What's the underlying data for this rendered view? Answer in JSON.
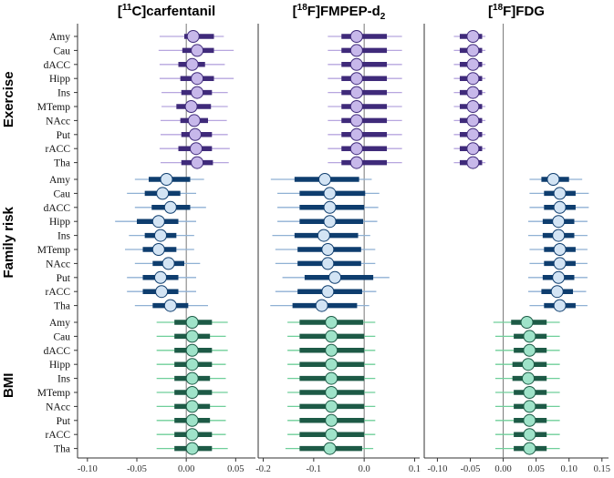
{
  "chart_data": {
    "type": "forest",
    "regions": [
      "Amy",
      "Cau",
      "dACC",
      "Hipp",
      "Ins",
      "MTemp",
      "NAcc",
      "Put",
      "rACC",
      "Tha"
    ],
    "groups": [
      {
        "label": "Exercise",
        "color": "#3f2a7a",
        "fill": "#c7b8ea",
        "thin": "#b7a6df"
      },
      {
        "label": "Family risk",
        "color": "#0e3d6e",
        "fill": "#d3e4f4",
        "thin": "#8fb1d4"
      },
      {
        "label": "BMI",
        "color": "#1d5a46",
        "fill": "#9fe3c9",
        "thin": "#6fcf9a"
      }
    ],
    "panels": [
      {
        "title_parts": [
          "[",
          "11",
          "C]carfentanil"
        ],
        "ticks": [
          "-0.10",
          "-0.05",
          "0.00",
          "0.05"
        ],
        "tick_values": [
          -0.1,
          -0.05,
          0.0,
          0.05
        ],
        "xlim": [
          -0.11,
          0.07
        ],
        "estimates": [
          [
            {
              "est": 0.007,
              "lo50": -0.002,
              "hi50": 0.028,
              "lo95": -0.027,
              "hi95": 0.038
            },
            {
              "est": 0.011,
              "lo50": -0.004,
              "hi50": 0.028,
              "lo95": -0.028,
              "hi95": 0.048
            },
            {
              "est": 0.006,
              "lo50": -0.008,
              "hi50": 0.019,
              "lo95": -0.027,
              "hi95": 0.039
            },
            {
              "est": 0.011,
              "lo50": -0.006,
              "hi50": 0.028,
              "lo95": -0.027,
              "hi95": 0.048
            },
            {
              "est": 0.011,
              "lo50": -0.005,
              "hi50": 0.026,
              "lo95": -0.025,
              "hi95": 0.042
            },
            {
              "est": 0.005,
              "lo50": -0.01,
              "hi50": 0.025,
              "lo95": -0.025,
              "hi95": 0.042
            },
            {
              "est": 0.008,
              "lo50": -0.006,
              "hi50": 0.022,
              "lo95": -0.026,
              "hi95": 0.041
            },
            {
              "est": 0.009,
              "lo50": -0.005,
              "hi50": 0.026,
              "lo95": -0.026,
              "hi95": 0.042
            },
            {
              "est": 0.01,
              "lo50": -0.008,
              "hi50": 0.026,
              "lo95": -0.027,
              "hi95": 0.044
            },
            {
              "est": 0.011,
              "lo50": -0.005,
              "hi50": 0.027,
              "lo95": -0.026,
              "hi95": 0.043
            }
          ],
          [
            {
              "est": -0.02,
              "lo50": -0.038,
              "hi50": 0.004,
              "lo95": -0.052,
              "hi95": 0.018
            },
            {
              "est": -0.024,
              "lo50": -0.042,
              "hi50": -0.006,
              "lo95": -0.06,
              "hi95": 0.01
            },
            {
              "est": -0.016,
              "lo50": -0.035,
              "hi50": 0.004,
              "lo95": -0.052,
              "hi95": 0.02
            },
            {
              "est": -0.028,
              "lo50": -0.05,
              "hi50": -0.008,
              "lo95": -0.072,
              "hi95": 0.01
            },
            {
              "est": -0.026,
              "lo50": -0.042,
              "hi50": -0.01,
              "lo95": -0.058,
              "hi95": 0.008
            },
            {
              "est": -0.028,
              "lo50": -0.044,
              "hi50": -0.01,
              "lo95": -0.062,
              "hi95": 0.008
            },
            {
              "est": -0.018,
              "lo50": -0.034,
              "hi50": -0.002,
              "lo95": -0.052,
              "hi95": 0.014
            },
            {
              "est": -0.026,
              "lo50": -0.044,
              "hi50": -0.008,
              "lo95": -0.06,
              "hi95": 0.01
            },
            {
              "est": -0.025,
              "lo50": -0.044,
              "hi50": -0.008,
              "lo95": -0.06,
              "hi95": 0.01
            },
            {
              "est": -0.016,
              "lo50": -0.034,
              "hi50": 0.002,
              "lo95": -0.052,
              "hi95": 0.022
            }
          ],
          [
            {
              "est": 0.006,
              "lo50": -0.012,
              "hi50": 0.026,
              "lo95": -0.03,
              "hi95": 0.042
            },
            {
              "est": 0.006,
              "lo50": -0.012,
              "hi50": 0.024,
              "lo95": -0.03,
              "hi95": 0.04
            },
            {
              "est": 0.006,
              "lo50": -0.012,
              "hi50": 0.026,
              "lo95": -0.03,
              "hi95": 0.042
            },
            {
              "est": 0.006,
              "lo50": -0.012,
              "hi50": 0.026,
              "lo95": -0.03,
              "hi95": 0.04
            },
            {
              "est": 0.006,
              "lo50": -0.012,
              "hi50": 0.024,
              "lo95": -0.03,
              "hi95": 0.04
            },
            {
              "est": 0.006,
              "lo50": -0.012,
              "hi50": 0.026,
              "lo95": -0.03,
              "hi95": 0.042
            },
            {
              "est": 0.006,
              "lo50": -0.012,
              "hi50": 0.024,
              "lo95": -0.03,
              "hi95": 0.04
            },
            {
              "est": 0.006,
              "lo50": -0.012,
              "hi50": 0.024,
              "lo95": -0.03,
              "hi95": 0.04
            },
            {
              "est": 0.006,
              "lo50": -0.012,
              "hi50": 0.026,
              "lo95": -0.03,
              "hi95": 0.04
            },
            {
              "est": 0.006,
              "lo50": -0.012,
              "hi50": 0.026,
              "lo95": -0.03,
              "hi95": 0.042
            }
          ]
        ]
      },
      {
        "title_parts": [
          "[",
          "18",
          "F]FMPEP-d",
          "2"
        ],
        "ticks": [
          "-0.2",
          "-0.1",
          "0.0",
          "0.1"
        ],
        "tick_values": [
          -0.2,
          -0.1,
          0.0,
          0.1
        ],
        "xlim": [
          -0.21,
          0.11
        ],
        "estimates": [
          [
            {
              "est": -0.015,
              "lo50": -0.045,
              "hi50": 0.045,
              "lo95": -0.072,
              "hi95": 0.075
            },
            {
              "est": -0.015,
              "lo50": -0.045,
              "hi50": 0.045,
              "lo95": -0.072,
              "hi95": 0.075
            },
            {
              "est": -0.015,
              "lo50": -0.045,
              "hi50": 0.045,
              "lo95": -0.072,
              "hi95": 0.075
            },
            {
              "est": -0.015,
              "lo50": -0.045,
              "hi50": 0.045,
              "lo95": -0.072,
              "hi95": 0.075
            },
            {
              "est": -0.015,
              "lo50": -0.045,
              "hi50": 0.045,
              "lo95": -0.072,
              "hi95": 0.075
            },
            {
              "est": -0.015,
              "lo50": -0.045,
              "hi50": 0.045,
              "lo95": -0.072,
              "hi95": 0.075
            },
            {
              "est": -0.015,
              "lo50": -0.045,
              "hi50": 0.045,
              "lo95": -0.072,
              "hi95": 0.075
            },
            {
              "est": -0.015,
              "lo50": -0.045,
              "hi50": 0.045,
              "lo95": -0.072,
              "hi95": 0.075
            },
            {
              "est": -0.015,
              "lo50": -0.045,
              "hi50": 0.045,
              "lo95": -0.072,
              "hi95": 0.075
            },
            {
              "est": -0.015,
              "lo50": -0.045,
              "hi50": 0.045,
              "lo95": -0.072,
              "hi95": 0.075
            }
          ],
          [
            {
              "est": -0.078,
              "lo50": -0.138,
              "hi50": -0.01,
              "lo95": -0.185,
              "hi95": 0.015
            },
            {
              "est": -0.068,
              "lo50": -0.128,
              "hi50": 0.002,
              "lo95": -0.172,
              "hi95": 0.03
            },
            {
              "est": -0.068,
              "lo50": -0.128,
              "hi50": 0.0,
              "lo95": -0.172,
              "hi95": 0.028
            },
            {
              "est": -0.068,
              "lo50": -0.128,
              "hi50": -0.002,
              "lo95": -0.172,
              "hi95": 0.026
            },
            {
              "est": -0.08,
              "lo50": -0.138,
              "hi50": -0.012,
              "lo95": -0.182,
              "hi95": 0.012
            },
            {
              "est": -0.072,
              "lo50": -0.132,
              "hi50": -0.006,
              "lo95": -0.176,
              "hi95": 0.022
            },
            {
              "est": -0.072,
              "lo50": -0.132,
              "hi50": -0.006,
              "lo95": -0.176,
              "hi95": 0.022
            },
            {
              "est": -0.058,
              "lo50": -0.118,
              "hi50": 0.018,
              "lo95": -0.162,
              "hi95": 0.05
            },
            {
              "est": -0.072,
              "lo50": -0.132,
              "hi50": -0.004,
              "lo95": -0.176,
              "hi95": 0.024
            },
            {
              "est": -0.084,
              "lo50": -0.142,
              "hi50": -0.014,
              "lo95": -0.186,
              "hi95": 0.01
            }
          ],
          [
            {
              "est": -0.065,
              "lo50": -0.128,
              "hi50": -0.002,
              "lo95": -0.152,
              "hi95": 0.022
            },
            {
              "est": -0.065,
              "lo50": -0.128,
              "hi50": 0.0,
              "lo95": -0.152,
              "hi95": 0.022
            },
            {
              "est": -0.065,
              "lo50": -0.128,
              "hi50": 0.0,
              "lo95": -0.152,
              "hi95": 0.022
            },
            {
              "est": -0.065,
              "lo50": -0.128,
              "hi50": 0.0,
              "lo95": -0.152,
              "hi95": 0.022
            },
            {
              "est": -0.065,
              "lo50": -0.128,
              "hi50": 0.0,
              "lo95": -0.152,
              "hi95": 0.022
            },
            {
              "est": -0.065,
              "lo50": -0.128,
              "hi50": 0.0,
              "lo95": -0.152,
              "hi95": 0.022
            },
            {
              "est": -0.065,
              "lo50": -0.128,
              "hi50": 0.0,
              "lo95": -0.152,
              "hi95": 0.022
            },
            {
              "est": -0.065,
              "lo50": -0.128,
              "hi50": 0.0,
              "lo95": -0.152,
              "hi95": 0.022
            },
            {
              "est": -0.065,
              "lo50": -0.128,
              "hi50": 0.0,
              "lo95": -0.152,
              "hi95": 0.022
            },
            {
              "est": -0.068,
              "lo50": -0.128,
              "hi50": -0.004,
              "lo95": -0.156,
              "hi95": 0.018
            }
          ]
        ]
      },
      {
        "title_parts": [
          "[",
          "18",
          "F]FDG"
        ],
        "ticks": [
          "-0.10",
          "-0.05",
          "0.00",
          "0.05",
          "0.10",
          "0.15"
        ],
        "tick_values": [
          -0.1,
          -0.05,
          0.0,
          0.05,
          0.1,
          0.15
        ],
        "xlim": [
          -0.12,
          0.16
        ],
        "estimates": [
          [
            {
              "est": -0.046,
              "lo50": -0.066,
              "hi50": -0.032,
              "lo95": -0.075,
              "hi95": -0.027
            },
            {
              "est": -0.046,
              "lo50": -0.066,
              "hi50": -0.032,
              "lo95": -0.075,
              "hi95": -0.027
            },
            {
              "est": -0.046,
              "lo50": -0.066,
              "hi50": -0.032,
              "lo95": -0.075,
              "hi95": -0.027
            },
            {
              "est": -0.046,
              "lo50": -0.066,
              "hi50": -0.032,
              "lo95": -0.075,
              "hi95": -0.027
            },
            {
              "est": -0.046,
              "lo50": -0.066,
              "hi50": -0.032,
              "lo95": -0.075,
              "hi95": -0.027
            },
            {
              "est": -0.046,
              "lo50": -0.066,
              "hi50": -0.032,
              "lo95": -0.075,
              "hi95": -0.027
            },
            {
              "est": -0.046,
              "lo50": -0.066,
              "hi50": -0.032,
              "lo95": -0.075,
              "hi95": -0.027
            },
            {
              "est": -0.046,
              "lo50": -0.066,
              "hi50": -0.032,
              "lo95": -0.075,
              "hi95": -0.027
            },
            {
              "est": -0.046,
              "lo50": -0.066,
              "hi50": -0.032,
              "lo95": -0.075,
              "hi95": -0.027
            },
            {
              "est": -0.046,
              "lo50": -0.066,
              "hi50": -0.032,
              "lo95": -0.075,
              "hi95": -0.027
            }
          ],
          [
            {
              "est": 0.076,
              "lo50": 0.058,
              "hi50": 0.1,
              "lo95": 0.04,
              "hi95": 0.12
            },
            {
              "est": 0.086,
              "lo50": 0.062,
              "hi50": 0.11,
              "lo95": 0.04,
              "hi95": 0.13
            },
            {
              "est": 0.086,
              "lo50": 0.062,
              "hi50": 0.11,
              "lo95": 0.04,
              "hi95": 0.13
            },
            {
              "est": 0.084,
              "lo50": 0.06,
              "hi50": 0.108,
              "lo95": 0.038,
              "hi95": 0.128
            },
            {
              "est": 0.084,
              "lo50": 0.06,
              "hi50": 0.108,
              "lo95": 0.038,
              "hi95": 0.128
            },
            {
              "est": 0.086,
              "lo50": 0.062,
              "hi50": 0.11,
              "lo95": 0.04,
              "hi95": 0.128
            },
            {
              "est": 0.086,
              "lo50": 0.062,
              "hi50": 0.11,
              "lo95": 0.04,
              "hi95": 0.128
            },
            {
              "est": 0.084,
              "lo50": 0.06,
              "hi50": 0.108,
              "lo95": 0.038,
              "hi95": 0.128
            },
            {
              "est": 0.082,
              "lo50": 0.058,
              "hi50": 0.106,
              "lo95": 0.038,
              "hi95": 0.126
            },
            {
              "est": 0.086,
              "lo50": 0.062,
              "hi50": 0.11,
              "lo95": 0.04,
              "hi95": 0.128
            }
          ],
          [
            {
              "est": 0.036,
              "lo50": 0.012,
              "hi50": 0.066,
              "lo95": -0.015,
              "hi95": 0.086
            },
            {
              "est": 0.04,
              "lo50": 0.016,
              "hi50": 0.066,
              "lo95": -0.012,
              "hi95": 0.086
            },
            {
              "est": 0.04,
              "lo50": 0.016,
              "hi50": 0.066,
              "lo95": -0.012,
              "hi95": 0.086
            },
            {
              "est": 0.038,
              "lo50": 0.014,
              "hi50": 0.066,
              "lo95": -0.012,
              "hi95": 0.086
            },
            {
              "est": 0.038,
              "lo50": 0.014,
              "hi50": 0.066,
              "lo95": -0.012,
              "hi95": 0.086
            },
            {
              "est": 0.04,
              "lo50": 0.016,
              "hi50": 0.066,
              "lo95": -0.012,
              "hi95": 0.086
            },
            {
              "est": 0.04,
              "lo50": 0.016,
              "hi50": 0.066,
              "lo95": -0.012,
              "hi95": 0.086
            },
            {
              "est": 0.04,
              "lo50": 0.016,
              "hi50": 0.066,
              "lo95": -0.012,
              "hi95": 0.086
            },
            {
              "est": 0.04,
              "lo50": 0.016,
              "hi50": 0.066,
              "lo95": -0.012,
              "hi95": 0.086
            },
            {
              "est": 0.04,
              "lo50": 0.016,
              "hi50": 0.066,
              "lo95": -0.012,
              "hi95": 0.086
            }
          ]
        ]
      }
    ]
  }
}
